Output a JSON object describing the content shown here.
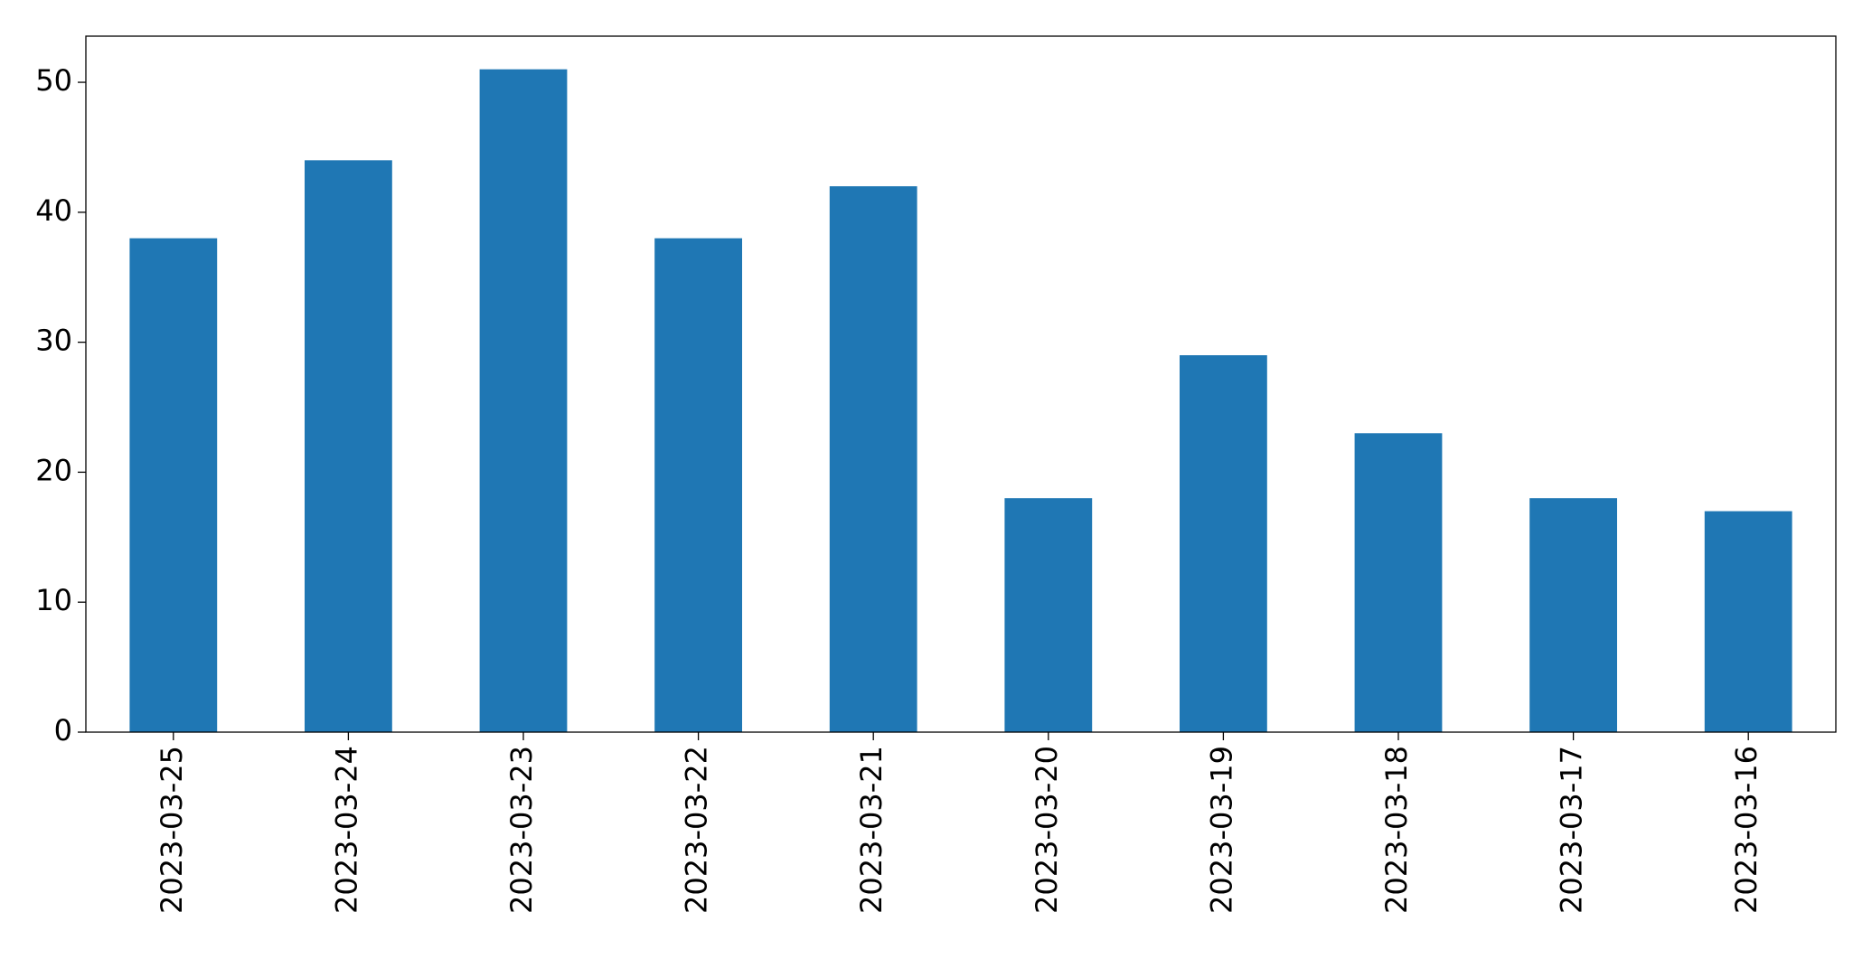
{
  "chart_data": {
    "type": "bar",
    "categories": [
      "2023-03-25",
      "2023-03-24",
      "2023-03-23",
      "2023-03-22",
      "2023-03-21",
      "2023-03-20",
      "2023-03-19",
      "2023-03-18",
      "2023-03-17",
      "2023-03-16"
    ],
    "values": [
      38,
      44,
      51,
      38,
      42,
      18,
      29,
      23,
      18,
      17
    ],
    "color": "#1f77b4",
    "ylim": [
      0,
      53.55
    ],
    "yticks": [
      0,
      10,
      20,
      30,
      40,
      50
    ],
    "grid": false
  }
}
